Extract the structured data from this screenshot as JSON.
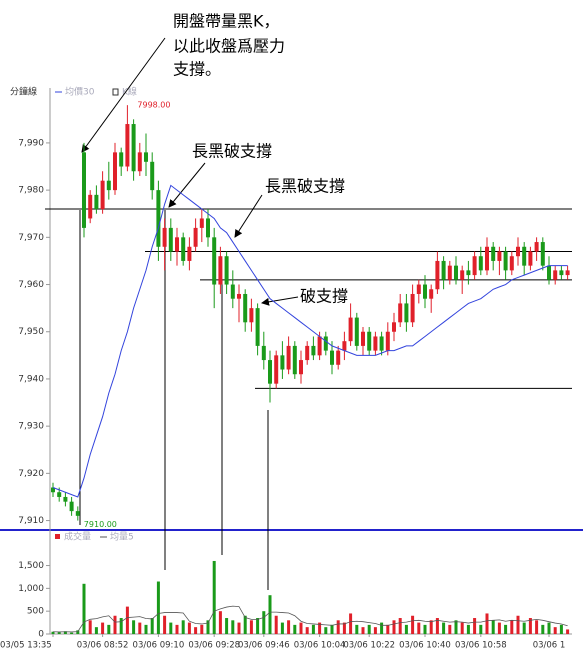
{
  "chart_data": [
    {
      "type": "candlestick",
      "title": "分鐘線",
      "ohlc_name": "K線",
      "up_color": "#e0202a",
      "down_color": "#1a9a1a",
      "ohlc": [
        [
          7917,
          7918,
          7915,
          7916
        ],
        [
          7916,
          7917,
          7914,
          7915
        ],
        [
          7915,
          7916,
          7913,
          7914
        ],
        [
          7914,
          7915,
          7911,
          7912
        ],
        [
          7912,
          7913,
          7910,
          7911
        ],
        [
          7988,
          7990,
          7970,
          7972
        ],
        [
          7974,
          7980,
          7973,
          7979
        ],
        [
          7979,
          7981,
          7975,
          7976
        ],
        [
          7976,
          7984,
          7975,
          7982
        ],
        [
          7982,
          7986,
          7978,
          7980
        ],
        [
          7980,
          7990,
          7979,
          7988
        ],
        [
          7988,
          7989,
          7983,
          7985
        ],
        [
          7985,
          7998,
          7984,
          7994
        ],
        [
          7994,
          7995,
          7982,
          7984
        ],
        [
          7984,
          7990,
          7983,
          7988
        ],
        [
          7988,
          7992,
          7983,
          7986
        ],
        [
          7986,
          7988,
          7978,
          7980
        ],
        [
          7980,
          7982,
          7965,
          7968
        ],
        [
          7968,
          7974,
          7963,
          7972
        ],
        [
          7972,
          7974,
          7965,
          7967
        ],
        [
          7967,
          7972,
          7964,
          7970
        ],
        [
          7970,
          7971,
          7964,
          7965
        ],
        [
          7965,
          7970,
          7963,
          7968
        ],
        [
          7968,
          7974,
          7967,
          7972
        ],
        [
          7972,
          7976,
          7969,
          7974
        ],
        [
          7974,
          7976,
          7968,
          7970
        ],
        [
          7970,
          7972,
          7955,
          7960
        ],
        [
          7960,
          7968,
          7958,
          7966
        ],
        [
          7966,
          7967,
          7958,
          7960
        ],
        [
          7960,
          7963,
          7955,
          7957
        ],
        [
          7957,
          7960,
          7952,
          7958
        ],
        [
          7958,
          7959,
          7950,
          7952
        ],
        [
          7952,
          7957,
          7950,
          7955
        ],
        [
          7955,
          7956,
          7945,
          7947
        ],
        [
          7947,
          7950,
          7942,
          7944
        ],
        [
          7944,
          7946,
          7935,
          7939
        ],
        [
          7939,
          7946,
          7938,
          7945
        ],
        [
          7945,
          7948,
          7940,
          7942
        ],
        [
          7942,
          7949,
          7941,
          7947
        ],
        [
          7947,
          7948,
          7940,
          7941
        ],
        [
          7941,
          7946,
          7939,
          7944
        ],
        [
          7944,
          7948,
          7943,
          7947
        ],
        [
          7947,
          7949,
          7944,
          7945
        ],
        [
          7945,
          7950,
          7944,
          7949
        ],
        [
          7949,
          7950,
          7945,
          7946
        ],
        [
          7946,
          7948,
          7941,
          7943
        ],
        [
          7943,
          7947,
          7942,
          7946
        ],
        [
          7946,
          7950,
          7944,
          7948
        ],
        [
          7948,
          7956,
          7947,
          7953
        ],
        [
          7953,
          7954,
          7946,
          7947
        ],
        [
          7947,
          7951,
          7945,
          7950
        ],
        [
          7950,
          7951,
          7945,
          7946
        ],
        [
          7946,
          7950,
          7945,
          7949
        ],
        [
          7949,
          7950,
          7945,
          7946
        ],
        [
          7946,
          7952,
          7945,
          7950
        ],
        [
          7950,
          7954,
          7948,
          7952
        ],
        [
          7952,
          7958,
          7951,
          7956
        ],
        [
          7956,
          7958,
          7950,
          7952
        ],
        [
          7952,
          7960,
          7951,
          7958
        ],
        [
          7958,
          7961,
          7956,
          7960
        ],
        [
          7960,
          7962,
          7955,
          7957
        ],
        [
          7957,
          7960,
          7954,
          7959
        ],
        [
          7959,
          7967,
          7958,
          7965
        ],
        [
          7965,
          7966,
          7959,
          7961
        ],
        [
          7961,
          7965,
          7960,
          7964
        ],
        [
          7964,
          7966,
          7960,
          7961
        ],
        [
          7961,
          7964,
          7958,
          7963
        ],
        [
          7963,
          7965,
          7960,
          7962
        ],
        [
          7962,
          7967,
          7961,
          7966
        ],
        [
          7966,
          7968,
          7962,
          7963
        ],
        [
          7963,
          7970,
          7962,
          7968
        ],
        [
          7968,
          7969,
          7963,
          7965
        ],
        [
          7965,
          7968,
          7962,
          7967
        ],
        [
          7967,
          7968,
          7961,
          7963
        ],
        [
          7963,
          7967,
          7962,
          7966
        ],
        [
          7966,
          7970,
          7964,
          7968
        ],
        [
          7968,
          7969,
          7962,
          7964
        ],
        [
          7964,
          7968,
          7963,
          7967
        ],
        [
          7967,
          7970,
          7965,
          7969
        ],
        [
          7969,
          7970,
          7963,
          7964
        ],
        [
          7964,
          7966,
          7960,
          7961
        ],
        [
          7961,
          7964,
          7960,
          7963
        ],
        [
          7963,
          7964,
          7961,
          7962
        ],
        [
          7962,
          7964,
          7961,
          7963
        ]
      ],
      "series": [
        {
          "name": "均價30",
          "color": "#3344dd",
          "values": [
            7917,
            7916.5,
            7916,
            7915.5,
            7915,
            7919,
            7924,
            7928,
            7932,
            7937,
            7941,
            7946,
            7950,
            7955,
            7959,
            7963,
            7968,
            7972,
            7977,
            7981,
            7980,
            7979,
            7978,
            7977,
            7976,
            7975,
            7974,
            7972,
            7971,
            7969,
            7967,
            7965,
            7963,
            7961,
            7959,
            7957,
            7956,
            7955,
            7954,
            7953,
            7952,
            7951,
            7950,
            7949,
            7948,
            7947,
            7946.5,
            7946,
            7945.5,
            7945,
            7945,
            7945,
            7945,
            7945.5,
            7946,
            7946,
            7946.5,
            7947,
            7947,
            7948,
            7949,
            7950,
            7951,
            7952,
            7953,
            7954,
            7955,
            7956,
            7956.5,
            7957,
            7958,
            7959,
            7959.5,
            7960,
            7961,
            7961.5,
            7962,
            7962.5,
            7963,
            7963.5,
            7964,
            7964,
            7964,
            7964
          ]
        }
      ],
      "max_label": {
        "value": 7998,
        "label": "7998.00"
      },
      "min_label": {
        "value": 7910,
        "label": "7910.00"
      },
      "support_lines": [
        7976,
        7967,
        7961,
        7938
      ],
      "ylim": [
        7908,
        8001
      ],
      "yticks": [
        {
          "value": 7910,
          "label": "7,910"
        },
        {
          "value": 7920,
          "label": "7,920"
        },
        {
          "value": 7930,
          "label": "7,930"
        },
        {
          "value": 7940,
          "label": "7,940"
        },
        {
          "value": 7950,
          "label": "7,950"
        },
        {
          "value": 7960,
          "label": "7,960"
        },
        {
          "value": 7970,
          "label": "7,970"
        },
        {
          "value": 7980,
          "label": "7,980"
        },
        {
          "value": 7990,
          "label": "7,990"
        }
      ],
      "annotations": [
        "開盤帶量黑K，",
        "以此收盤爲壓力",
        "支撐。",
        "長黑破支撐",
        "長黑破支撐",
        "破支撐"
      ]
    },
    {
      "type": "bar",
      "categories": [
        "03/05 13:35",
        null,
        null,
        null,
        null,
        null,
        null,
        null,
        "03/06 08:52",
        null,
        null,
        null,
        null,
        null,
        null,
        null,
        null,
        "03/06 09:10",
        null,
        null,
        null,
        null,
        null,
        null,
        null,
        null,
        "03/06 09:28",
        null,
        null,
        null,
        null,
        null,
        null,
        null,
        "03/06 09:46",
        null,
        null,
        null,
        null,
        null,
        null,
        null,
        null,
        "03/06 10:04",
        null,
        null,
        null,
        null,
        null,
        null,
        null,
        "03/06 10:22",
        null,
        null,
        null,
        null,
        null,
        null,
        null,
        null,
        "03/06 10:40",
        null,
        null,
        null,
        null,
        null,
        null,
        null,
        null,
        "03/06 10:58",
        null,
        null,
        null,
        null,
        null,
        null,
        null,
        null,
        null,
        null,
        "03/06 1",
        null,
        null,
        null
      ],
      "series": [
        {
          "name": "成交量",
          "color": "#e0202a",
          "values": [
            50,
            40,
            60,
            30,
            80,
            1100,
            300,
            150,
            250,
            200,
            400,
            350,
            600,
            300,
            250,
            200,
            350,
            1150,
            400,
            250,
            200,
            300,
            250,
            150,
            200,
            300,
            1600,
            500,
            350,
            300,
            250,
            400,
            300,
            350,
            500,
            850,
            400,
            250,
            300,
            200,
            250,
            150,
            200,
            250,
            150,
            200,
            300,
            250,
            450,
            200,
            150,
            200,
            150,
            250,
            200,
            300,
            350,
            200,
            400,
            250,
            200,
            300,
            350,
            250,
            200,
            300,
            250,
            200,
            350,
            200,
            450,
            300,
            250,
            200,
            300,
            400,
            250,
            350,
            300,
            200,
            250,
            150,
            200,
            100
          ]
        },
        {
          "name": "均量5",
          "color": "#555555",
          "values": [
            50,
            45,
            50,
            45,
            52,
            262,
            322,
            336,
            376,
            400,
            260,
            270,
            360,
            370,
            380,
            340,
            330,
            450,
            470,
            470,
            470,
            460,
            280,
            230,
            220,
            240,
            500,
            550,
            590,
            610,
            600,
            360,
            320,
            320,
            360,
            480,
            480,
            470,
            460,
            400,
            280,
            230,
            220,
            210,
            200,
            190,
            220,
            220,
            270,
            280,
            270,
            250,
            230,
            190,
            190,
            220,
            250,
            260,
            290,
            300,
            280,
            270,
            300,
            280,
            260,
            270,
            260,
            240,
            260,
            260,
            290,
            300,
            310,
            280,
            300,
            290,
            280,
            300,
            320,
            300,
            270,
            240,
            220,
            180
          ]
        }
      ],
      "ylim": [
        0,
        1950
      ],
      "yticks": [
        0,
        500,
        {
          "value": 1000,
          "label": "1,000"
        },
        {
          "value": 1500,
          "label": "1,500"
        }
      ]
    }
  ]
}
